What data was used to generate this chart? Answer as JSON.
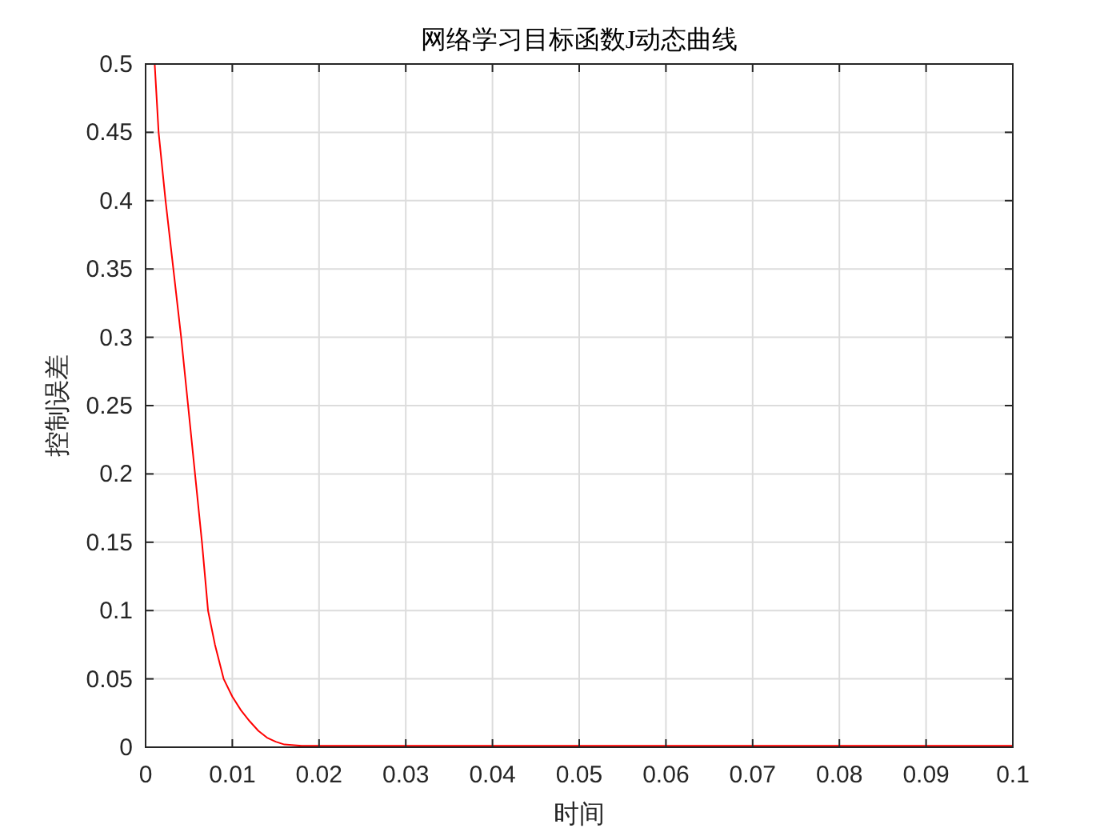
{
  "chart_data": {
    "type": "line",
    "title": "网络学习目标函数J动态曲线",
    "xlabel": "时间",
    "ylabel": "控制误差",
    "x": [
      0.00105,
      0.0015,
      0.0023,
      0.0032,
      0.0041,
      0.0049,
      0.0057,
      0.0065,
      0.0072,
      0.008,
      0.009,
      0.01,
      0.011,
      0.012,
      0.013,
      0.014,
      0.015,
      0.016,
      0.018,
      0.02,
      0.03,
      0.04,
      0.05,
      0.06,
      0.07,
      0.08,
      0.09,
      0.1
    ],
    "series": [
      {
        "color": "#ff0000",
        "values": [
          0.5,
          0.45,
          0.4,
          0.35,
          0.3,
          0.25,
          0.2,
          0.15,
          0.1,
          0.075,
          0.05,
          0.037,
          0.027,
          0.019,
          0.012,
          0.007,
          0.004,
          0.002,
          0.001,
          0.001,
          0.001,
          0.001,
          0.001,
          0.001,
          0.001,
          0.001,
          0.001,
          0.001
        ]
      }
    ],
    "xlim": [
      0,
      0.1
    ],
    "ylim": [
      0,
      0.5
    ],
    "xticks": [
      0,
      0.01,
      0.02,
      0.03,
      0.04,
      0.05,
      0.06,
      0.07,
      0.08,
      0.09,
      0.1
    ],
    "yticks": [
      0,
      0.05,
      0.1,
      0.15,
      0.2,
      0.25,
      0.3,
      0.35,
      0.4,
      0.45,
      0.5
    ],
    "grid": true,
    "marker": "none",
    "line_style": "solid"
  }
}
